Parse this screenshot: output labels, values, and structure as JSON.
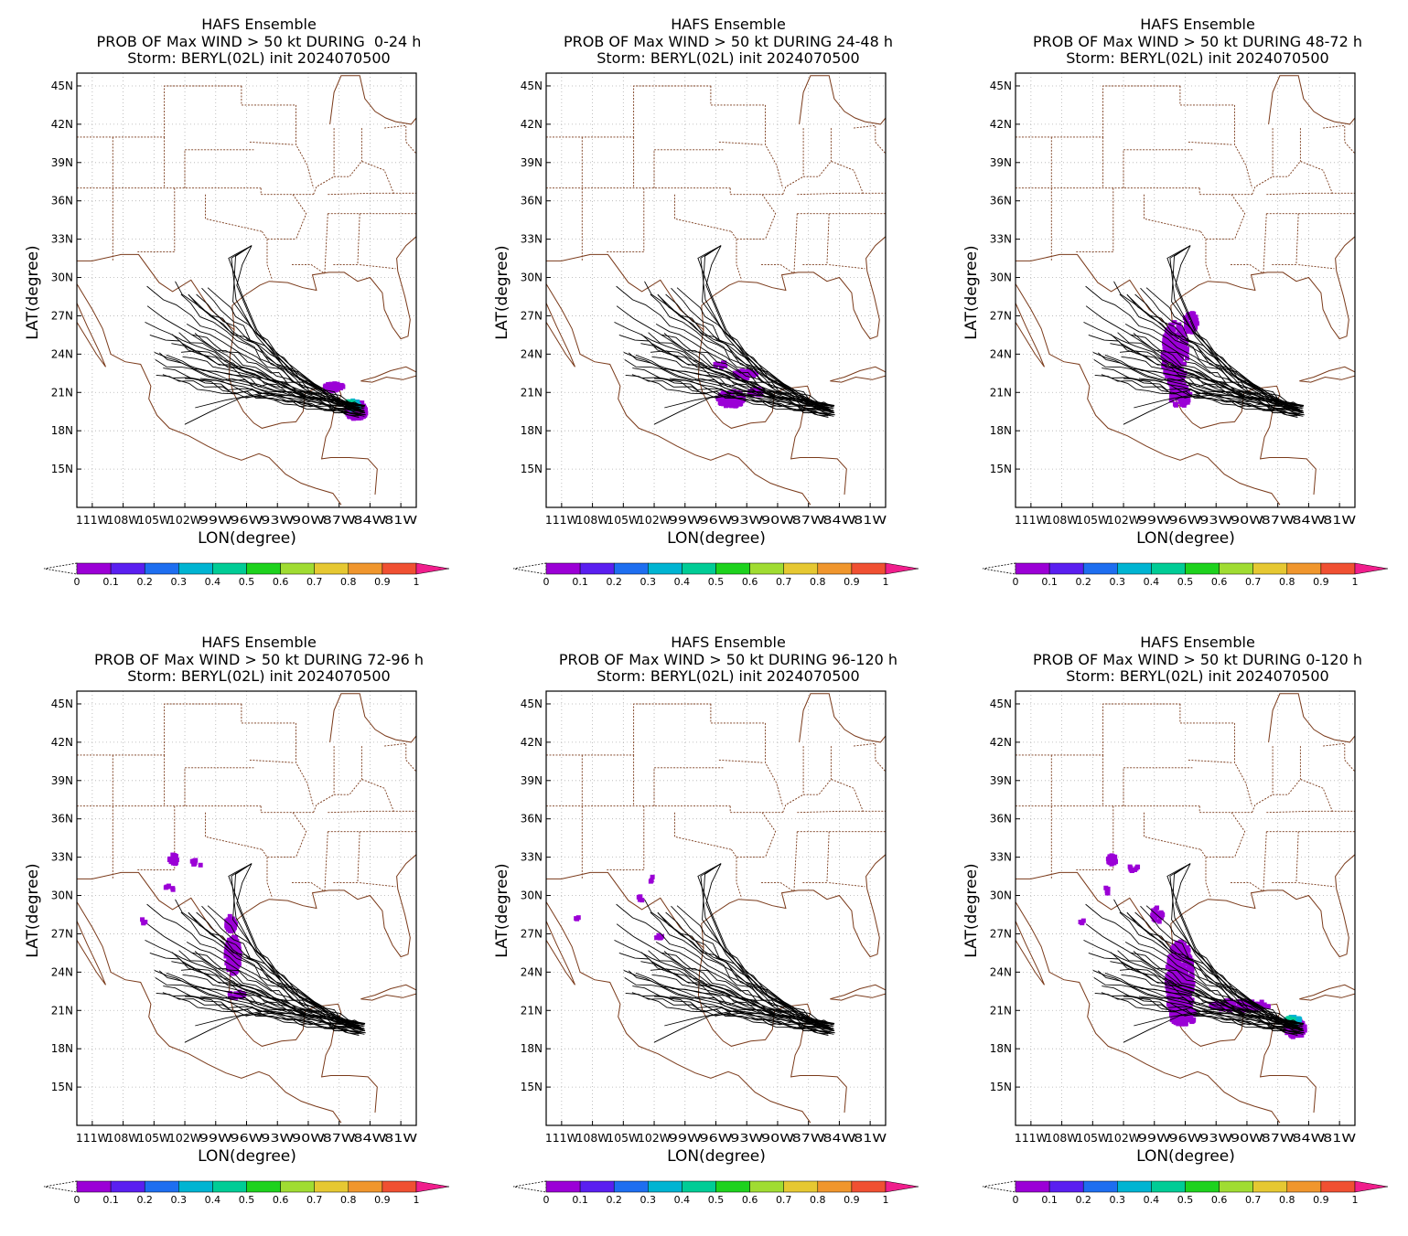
{
  "lat_labels": [
    "45N",
    "42N",
    "39N",
    "36N",
    "33N",
    "30N",
    "27N",
    "24N",
    "21N",
    "18N",
    "15N"
  ],
  "lon_labels": [
    "111W",
    "108W",
    "105W",
    "102W",
    "99W",
    "96W",
    "93W",
    "90W",
    "87W",
    "84W",
    "81W"
  ],
  "colorbar_labels": [
    "0",
    "0.1",
    "0.2",
    "0.3",
    "0.4",
    "0.5",
    "0.6",
    "0.7",
    "0.8",
    "0.9",
    "1"
  ],
  "colorbar_colors": [
    "#9b00d6",
    "#5a1ff0",
    "#1e6ef0",
    "#00b4d2",
    "#00cc96",
    "#1ed21e",
    "#a0dc32",
    "#e6c832",
    "#f0962d",
    "#f05032"
  ],
  "overflow_color": "#f01e8c",
  "track_color": "#000000",
  "border_color": "#7a3a1a",
  "panels": [
    {
      "title1": "HAFS Ensemble",
      "title2": "PROB OF Max WIND > 50 kt DURING  0-24 h",
      "title3": "Storm: BERYL(02L) init 2024070500",
      "ylabel": "LAT(degree)",
      "xlabel": "LON(degree)"
    },
    {
      "title1": "HAFS Ensemble",
      "title2": "PROB OF Max WIND > 50 kt DURING 24-48 h",
      "title3": "Storm: BERYL(02L) init 2024070500",
      "ylabel": "LAT(degree)",
      "xlabel": "LON(degree)"
    },
    {
      "title1": "HAFS Ensemble",
      "title2": "PROB OF Max WIND > 50 kt DURING 48-72 h",
      "title3": "Storm: BERYL(02L) init 2024070500",
      "ylabel": "LAT(degree)",
      "xlabel": "LON(degree)"
    },
    {
      "title1": "HAFS Ensemble",
      "title2": "PROB OF Max WIND > 50 kt DURING 72-96 h",
      "title3": "Storm: BERYL(02L) init 2024070500",
      "ylabel": "LAT(degree)",
      "xlabel": "LON(degree)"
    },
    {
      "title1": "HAFS Ensemble",
      "title2": "PROB OF Max WIND > 50 kt DURING 96-120 h",
      "title3": "Storm: BERYL(02L) init 2024070500",
      "ylabel": "LAT(degree)",
      "xlabel": "LON(degree)"
    },
    {
      "title1": "HAFS Ensemble",
      "title2": "PROB OF Max WIND > 50 kt DURING 0-120 h",
      "title3": "Storm: BERYL(02L) init 2024070500",
      "ylabel": "LAT(degree)",
      "xlabel": "LON(degree)"
    }
  ]
}
